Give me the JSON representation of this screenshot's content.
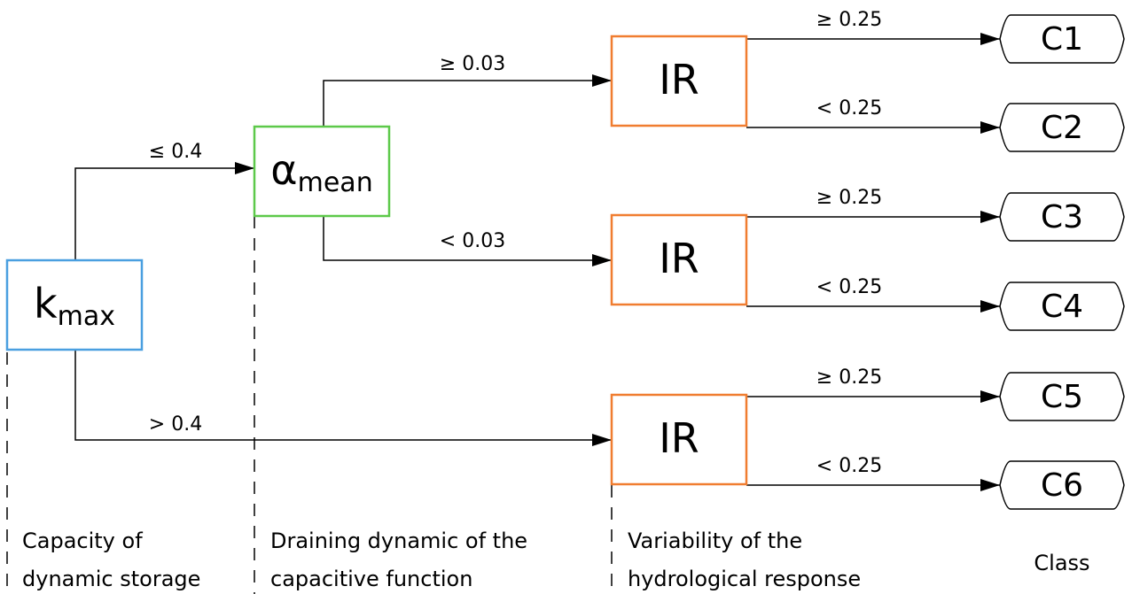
{
  "nodes": [
    {
      "label": "k",
      "subscript": "max"
    },
    {
      "label": "α",
      "subscript": "mean"
    },
    {
      "label": "IR"
    },
    {
      "label": "IR"
    },
    {
      "label": "IR"
    }
  ],
  "classes": [
    "C1",
    "C2",
    "C3",
    "C4",
    "C5",
    "C6"
  ],
  "edges": [
    {
      "label": "≤ 0.4"
    },
    {
      "label": "> 0.4"
    },
    {
      "label": "≥ 0.03"
    },
    {
      "label": "< 0.03"
    },
    {
      "label": "≥ 0.25"
    },
    {
      "label": "< 0.25"
    },
    {
      "label": "≥ 0.25"
    },
    {
      "label": "< 0.25"
    },
    {
      "label": "≥ 0.25"
    },
    {
      "label": "< 0.25"
    }
  ],
  "levels": [
    {
      "lines": [
        "Capacity of",
        "dynamic storage"
      ]
    },
    {
      "lines": [
        "Draining dynamic of the",
        "capacitive function"
      ]
    },
    {
      "lines": [
        "Variability of the",
        "hydrological response"
      ]
    },
    {
      "lines": [
        "Class"
      ]
    }
  ]
}
